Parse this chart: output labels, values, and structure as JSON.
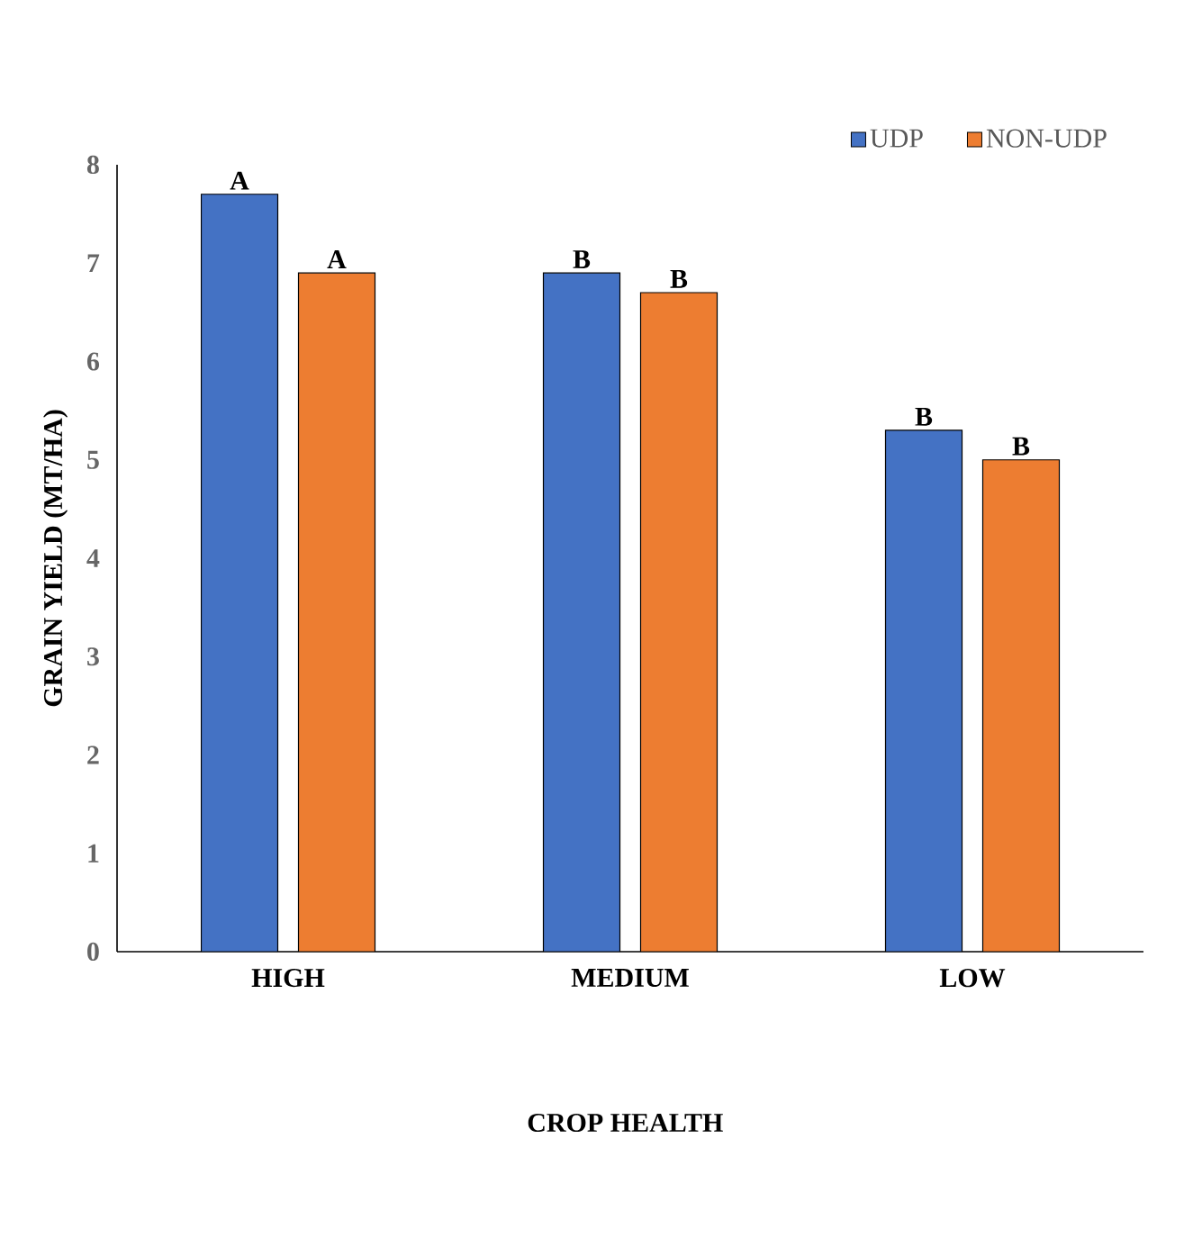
{
  "chart_data": {
    "type": "bar",
    "xlabel": "CROP HEALTH",
    "ylabel": "GRAIN YIELD (MT/HA)",
    "categories": [
      "HIGH",
      "MEDIUM",
      "LOW"
    ],
    "series": [
      {
        "name": "UDP",
        "color": "#4472c4",
        "values": [
          7.7,
          6.9,
          5.3
        ],
        "value_labels": [
          "A",
          "B",
          "B"
        ]
      },
      {
        "name": "NON-UDP",
        "color": "#ed7d31",
        "values": [
          6.9,
          6.7,
          5.0
        ],
        "value_labels": [
          "A",
          "B",
          "B"
        ]
      }
    ],
    "ylim": [
      0,
      8
    ],
    "yticks": [
      0,
      1,
      2,
      3,
      4,
      5,
      6,
      7,
      8
    ],
    "grid": false,
    "legend": "top right"
  }
}
